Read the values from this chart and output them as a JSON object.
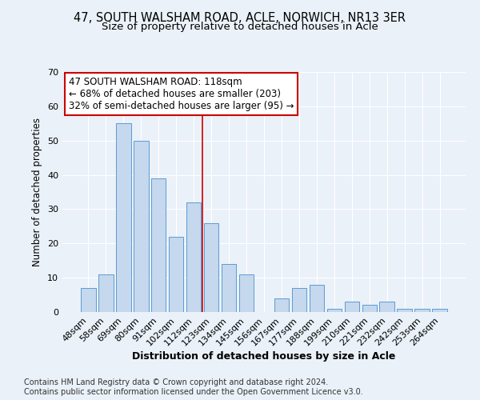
{
  "title": "47, SOUTH WALSHAM ROAD, ACLE, NORWICH, NR13 3ER",
  "subtitle": "Size of property relative to detached houses in Acle",
  "xlabel": "Distribution of detached houses by size in Acle",
  "ylabel": "Number of detached properties",
  "bar_labels": [
    "48sqm",
    "58sqm",
    "69sqm",
    "80sqm",
    "91sqm",
    "102sqm",
    "112sqm",
    "123sqm",
    "134sqm",
    "145sqm",
    "156sqm",
    "167sqm",
    "177sqm",
    "188sqm",
    "199sqm",
    "210sqm",
    "221sqm",
    "232sqm",
    "242sqm",
    "253sqm",
    "264sqm"
  ],
  "bar_values": [
    7,
    11,
    55,
    50,
    39,
    22,
    32,
    26,
    14,
    11,
    0,
    4,
    7,
    8,
    1,
    3,
    2,
    3,
    1,
    1,
    1
  ],
  "bar_color": "#c5d8ed",
  "bar_edge_color": "#5b9bd5",
  "ylim": [
    0,
    70
  ],
  "yticks": [
    0,
    10,
    20,
    30,
    40,
    50,
    60,
    70
  ],
  "vline_x": 6.5,
  "vline_color": "#cc0000",
  "annotation_line1": "47 SOUTH WALSHAM ROAD: 118sqm",
  "annotation_line2": "← 68% of detached houses are smaller (203)",
  "annotation_line3": "32% of semi-detached houses are larger (95) →",
  "annotation_box_color": "#ffffff",
  "annotation_box_edge": "#cc0000",
  "footer_line1": "Contains HM Land Registry data © Crown copyright and database right 2024.",
  "footer_line2": "Contains public sector information licensed under the Open Government Licence v3.0.",
  "bg_color": "#eaf1f8",
  "plot_bg_color": "#eaf1f8",
  "title_fontsize": 10.5,
  "subtitle_fontsize": 9.5,
  "annotation_fontsize": 8.5,
  "footer_fontsize": 7.0
}
